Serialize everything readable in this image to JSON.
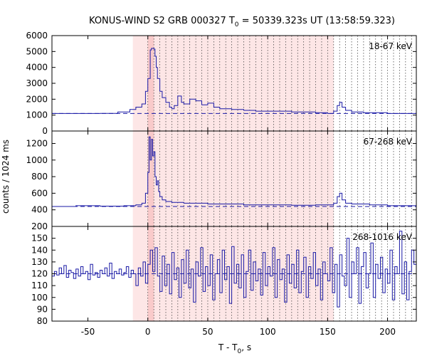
{
  "chart_data": {
    "type": "line",
    "title": {
      "prefix": "KONUS-WIND S2 GRB 000327 T",
      "subscript": "0",
      "suffix": " = 50339.323s UT (13:58:59.323)"
    },
    "xlabel": {
      "prefix": "T - T",
      "subscript": "0",
      "suffix": ", s"
    },
    "ylabel": "counts / 1024 ms",
    "xlim": [
      -80,
      224
    ],
    "x_ticks": [
      -50,
      0,
      50,
      100,
      150,
      200
    ],
    "x_tick_labels": [
      "-50",
      "0",
      "50",
      "100",
      "150",
      "200"
    ],
    "highlight": {
      "light_region": [
        -12.5,
        155
      ],
      "dark_region": [
        0,
        5
      ],
      "note": "Pink shaded interval with dotted vertical lines"
    },
    "dotted_lines": [
      0,
      5,
      10,
      15,
      20,
      25,
      30,
      35,
      40,
      45,
      50,
      55,
      60,
      65,
      70,
      75,
      80,
      85,
      90,
      95,
      100,
      105,
      110,
      115,
      120,
      125,
      130,
      135,
      140,
      145,
      150,
      155,
      160,
      165,
      170,
      175,
      180,
      185,
      190,
      195,
      200,
      205,
      210,
      215,
      220
    ],
    "panels": [
      {
        "band": "18-67 keV",
        "ylim": [
          0,
          6000
        ],
        "y_ticks": [
          0,
          1000,
          2000,
          3000,
          4000,
          5000,
          6000
        ],
        "y_tick_labels": [
          "0",
          "1000",
          "2000",
          "3000",
          "4000",
          "5000",
          "6000"
        ],
        "background": 1100,
        "series": {
          "x": [
            -80,
            -60,
            -40,
            -25,
            -15,
            -10,
            -5,
            -2,
            0,
            2,
            3,
            5,
            6,
            7,
            8,
            10,
            12,
            15,
            18,
            20,
            22,
            25,
            28,
            30,
            35,
            40,
            45,
            50,
            55,
            60,
            70,
            80,
            90,
            100,
            120,
            140,
            150,
            155,
            158,
            160,
            162,
            165,
            170,
            180,
            190,
            200,
            210,
            224
          ],
          "y": [
            1100,
            1100,
            1110,
            1200,
            1350,
            1500,
            1700,
            2500,
            3300,
            5100,
            5200,
            5150,
            4700,
            4000,
            3300,
            2500,
            2100,
            1800,
            1500,
            1400,
            1600,
            2200,
            1800,
            1700,
            2000,
            1900,
            1650,
            1750,
            1500,
            1400,
            1350,
            1300,
            1250,
            1250,
            1200,
            1150,
            1100,
            1250,
            1600,
            1800,
            1500,
            1300,
            1200,
            1150,
            1150,
            1100,
            1100,
            1150
          ]
        }
      },
      {
        "band": "67-268 keV",
        "ylim": [
          200,
          1350
        ],
        "y_ticks": [
          200,
          400,
          600,
          800,
          1000,
          1200
        ],
        "y_tick_labels": [
          "200",
          "400",
          "600",
          "800",
          "1000",
          "1200"
        ],
        "background": 440,
        "series": {
          "x": [
            -80,
            -60,
            -40,
            -20,
            -10,
            -5,
            -2,
            0,
            1,
            2,
            3,
            4,
            5,
            6,
            7,
            8,
            9,
            10,
            12,
            15,
            20,
            30,
            50,
            80,
            100,
            120,
            140,
            155,
            158,
            160,
            162,
            165,
            170,
            185,
            200,
            224
          ],
          "y": [
            440,
            450,
            445,
            450,
            460,
            480,
            600,
            850,
            1280,
            1000,
            1250,
            1050,
            1100,
            800,
            700,
            750,
            620,
            560,
            520,
            500,
            490,
            480,
            470,
            460,
            460,
            455,
            460,
            480,
            560,
            600,
            520,
            480,
            470,
            460,
            450,
            440
          ]
        }
      },
      {
        "band": "268-1016 keV",
        "ylim": [
          80,
          160
        ],
        "y_ticks": [
          80,
          90,
          100,
          110,
          120,
          130,
          140,
          150
        ],
        "y_tick_labels": [
          "80",
          "90",
          "100",
          "110",
          "120",
          "130",
          "140",
          "150"
        ],
        "background": 120,
        "series": {
          "x": [
            -80,
            -78,
            -76,
            -74,
            -72,
            -70,
            -68,
            -66,
            -64,
            -62,
            -60,
            -58,
            -56,
            -54,
            -52,
            -50,
            -48,
            -46,
            -44,
            -42,
            -40,
            -38,
            -36,
            -34,
            -32,
            -30,
            -28,
            -26,
            -24,
            -22,
            -20,
            -18,
            -16,
            -14,
            -12,
            -10,
            -8,
            -6,
            -4,
            -2,
            0,
            2,
            4,
            6,
            8,
            10,
            12,
            14,
            16,
            18,
            20,
            22,
            24,
            26,
            28,
            30,
            32,
            34,
            36,
            38,
            40,
            42,
            44,
            46,
            48,
            50,
            52,
            54,
            56,
            58,
            60,
            62,
            64,
            66,
            68,
            70,
            72,
            74,
            76,
            78,
            80,
            82,
            84,
            86,
            88,
            90,
            92,
            94,
            96,
            98,
            100,
            102,
            104,
            106,
            108,
            110,
            112,
            114,
            116,
            118,
            120,
            122,
            124,
            126,
            128,
            130,
            132,
            134,
            136,
            138,
            140,
            142,
            144,
            146,
            148,
            150,
            152,
            154,
            156,
            158,
            160,
            162,
            164,
            166,
            168,
            170,
            172,
            174,
            176,
            178,
            180,
            182,
            184,
            186,
            188,
            190,
            192,
            194,
            196,
            198,
            200,
            202,
            204,
            206,
            208,
            210,
            212,
            214,
            216,
            218,
            220,
            222
          ],
          "y": [
            118,
            122,
            119,
            125,
            120,
            127,
            117,
            123,
            121,
            116,
            124,
            118,
            126,
            120,
            122,
            115,
            128,
            119,
            121,
            117,
            123,
            120,
            125,
            118,
            129,
            116,
            122,
            120,
            124,
            119,
            121,
            126,
            117,
            123,
            120,
            110,
            125,
            118,
            130,
            112,
            128,
            140,
            122,
            142,
            118,
            105,
            135,
            110,
            128,
            103,
            138,
            115,
            125,
            100,
            132,
            112,
            140,
            108,
            124,
            96,
            130,
            118,
            142,
            105,
            126,
            110,
            136,
            98,
            120,
            132,
            104,
            140,
            115,
            126,
            95,
            143,
            112,
            128,
            108,
            136,
            100,
            122,
            140,
            106,
            130,
            114,
            124,
            102,
            138,
            110,
            126,
            118,
            142,
            100,
            132,
            115,
            124,
            96,
            136,
            112,
            128,
            108,
            140,
            104,
            122,
            134,
            100,
            126,
            116,
            138,
            110,
            124,
            98,
            130,
            120,
            114,
            142,
            104,
            128,
            92,
            136,
            118,
            110,
            150,
            100,
            130,
            120,
            142,
            95,
            126,
            138,
            108,
            120,
            146,
            100,
            128,
            116,
            134,
            104,
            124,
            112,
            140,
            98,
            126,
            120,
            156,
            103,
            130,
            98,
            122,
            140,
            128
          ]
        }
      }
    ]
  }
}
